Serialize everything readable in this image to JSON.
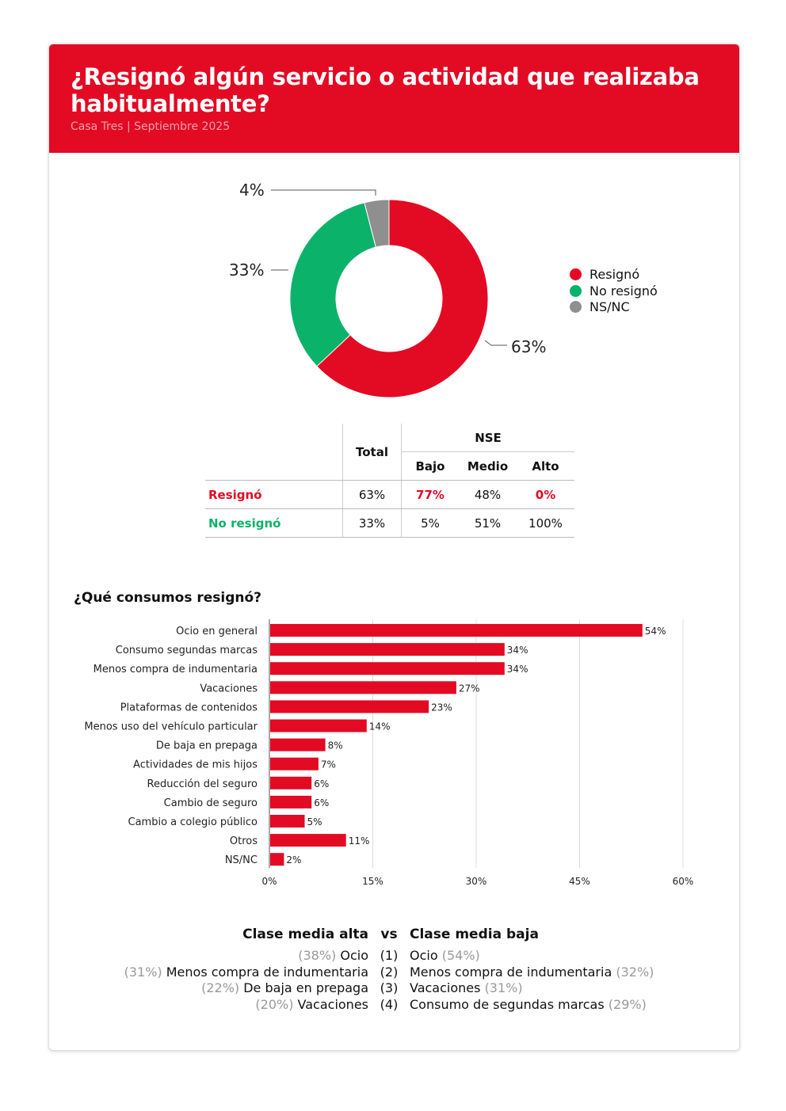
{
  "header": {
    "title": "¿Resignó algún servicio o actividad que realizaba habitualmente?",
    "subtitle": "Casa Tres | Septiembre 2025"
  },
  "colors": {
    "brand": "#e30a23",
    "resigno": "#e30a23",
    "no_resigno": "#0bb26a",
    "nsnc": "#8f8f8f"
  },
  "chart_data": [
    {
      "type": "pie",
      "variant": "donut",
      "categories": [
        "Resignó",
        "No resignó",
        "NS/NC"
      ],
      "values": [
        63,
        33,
        4
      ],
      "labels": [
        "63%",
        "33%",
        "4%"
      ],
      "legend_position": "right"
    },
    {
      "type": "bar",
      "orientation": "horizontal",
      "title": "¿Qué consumos resignó?",
      "categories": [
        "Ocio en general",
        "Consumo segundas marcas",
        "Menos compra de indumentaria",
        "Vacaciones",
        "Plataformas de contenidos",
        "Menos uso del vehículo particular",
        "De baja en prepaga",
        "Actividades de mis hijos",
        "Reducción del seguro",
        "Cambio de seguro",
        "Cambio a colegio público",
        "Otros",
        "NS/NC"
      ],
      "values": [
        54,
        34,
        34,
        27,
        23,
        14,
        8,
        7,
        6,
        6,
        5,
        11,
        2
      ],
      "xlim": [
        0,
        60
      ],
      "xticks": [
        "0%",
        "15%",
        "30%",
        "45%",
        "60%"
      ],
      "grid": true
    }
  ],
  "table": {
    "total": "Total",
    "nse": "NSE",
    "cols": [
      "Bajo",
      "Medio",
      "Alto"
    ],
    "rows": [
      {
        "label": "Resignó",
        "total": "63%",
        "vals": [
          "77%",
          "48%",
          "0%"
        ]
      },
      {
        "label": "No resignó",
        "total": "33%",
        "vals": [
          "5%",
          "51%",
          "100%"
        ]
      }
    ]
  },
  "comparison": {
    "left_title": "Clase media alta",
    "vs": "vs",
    "right_title": "Clase media baja",
    "rows": [
      {
        "lp": "(38%)",
        "l": "Ocio",
        "n": "(1)",
        "r": "Ocio",
        "rp": "(54%)"
      },
      {
        "lp": "(31%)",
        "l": "Menos compra de indumentaria",
        "n": "(2)",
        "r": "Menos compra de indumentaria",
        "rp": "(32%)"
      },
      {
        "lp": "(22%)",
        "l": "De baja en prepaga",
        "n": "(3)",
        "r": "Vacaciones",
        "rp": "(31%)"
      },
      {
        "lp": "(20%)",
        "l": "Vacaciones",
        "n": "(4)",
        "r": "Consumo de segundas marcas",
        "rp": "(29%)"
      }
    ]
  }
}
